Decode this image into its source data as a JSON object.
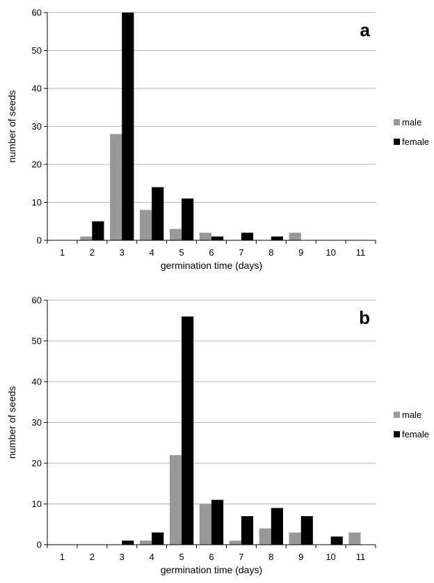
{
  "chart_data": [
    {
      "type": "bar",
      "panel_label": "a",
      "categories": [
        "1",
        "2",
        "3",
        "4",
        "5",
        "6",
        "7",
        "8",
        "9",
        "10",
        "11"
      ],
      "series": [
        {
          "name": "male",
          "color": "#999999",
          "values": [
            0,
            1,
            28,
            8,
            3,
            2,
            0,
            0,
            2,
            0,
            0
          ]
        },
        {
          "name": "female",
          "color": "#000000",
          "values": [
            0,
            5,
            60,
            14,
            11,
            1,
            2,
            1,
            0,
            0,
            0
          ]
        }
      ],
      "xlabel": "germination time (days)",
      "ylabel": "number of seeds",
      "ylim": [
        0,
        60
      ],
      "yticks": [
        "0",
        "10",
        "20",
        "30",
        "40",
        "50",
        "60"
      ],
      "grid": true,
      "legend_position": "right"
    },
    {
      "type": "bar",
      "panel_label": "b",
      "categories": [
        "1",
        "2",
        "3",
        "4",
        "5",
        "6",
        "7",
        "8",
        "9",
        "10",
        "11"
      ],
      "series": [
        {
          "name": "male",
          "color": "#999999",
          "values": [
            0,
            0,
            0,
            1,
            22,
            10,
            1,
            4,
            3,
            0,
            3
          ]
        },
        {
          "name": "female",
          "color": "#000000",
          "values": [
            0,
            0,
            1,
            3,
            56,
            11,
            7,
            9,
            7,
            2,
            0
          ]
        }
      ],
      "xlabel": "germination time (days)",
      "ylabel": "number of seeds",
      "ylim": [
        0,
        60
      ],
      "yticks": [
        "0",
        "10",
        "20",
        "30",
        "40",
        "50",
        "60"
      ],
      "grid": true,
      "legend_position": "right"
    }
  ]
}
